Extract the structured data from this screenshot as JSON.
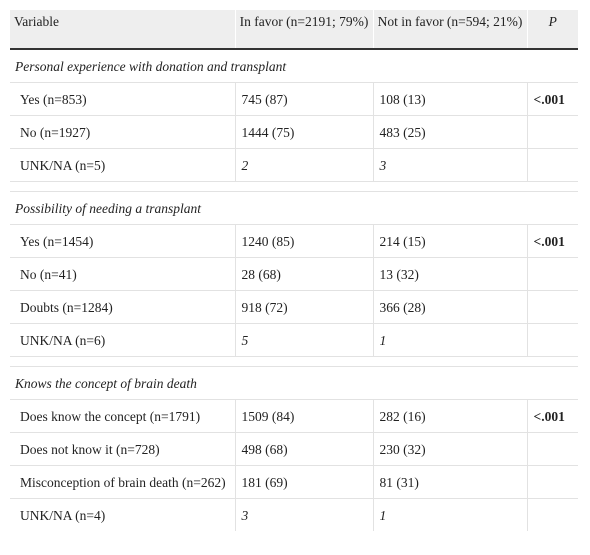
{
  "table": {
    "header": [
      "Variable",
      "In favor (n=2191; 79%)",
      "Not in favor (n=594; 21%)",
      "P"
    ],
    "sections": [
      {
        "title": "Personal experience with donation and transplant",
        "rows": [
          {
            "variable": "Yes (n=853)",
            "in_favor": "745 (87)",
            "not_in_favor": "108 (13)",
            "p": "<.001"
          },
          {
            "variable": "No (n=1927)",
            "in_favor": "1444 (75)",
            "not_in_favor": "483 (25)"
          },
          {
            "variable": "UNK/NA (n=5)",
            "in_favor": "2",
            "not_in_favor": "3",
            "italic": true
          }
        ]
      },
      {
        "title": "Possibility of needing a transplant",
        "rows": [
          {
            "variable": "Yes (n=1454)",
            "in_favor": "1240 (85)",
            "not_in_favor": "214 (15)",
            "p": "<.001"
          },
          {
            "variable": "No (n=41)",
            "in_favor": "28 (68)",
            "not_in_favor": "13 (32)"
          },
          {
            "variable": "Doubts (n=1284)",
            "in_favor": "918 (72)",
            "not_in_favor": "366 (28)"
          },
          {
            "variable": "UNK/NA (n=6)",
            "in_favor": "5",
            "not_in_favor": "1",
            "italic": true
          }
        ]
      },
      {
        "title": "Knows the concept of brain death",
        "rows": [
          {
            "variable": "Does know the concept (n=1791)",
            "in_favor": "1509 (84)",
            "not_in_favor": "282 (16)",
            "p": "<.001"
          },
          {
            "variable": "Does not know it (n=728)",
            "in_favor": "498 (68)",
            "not_in_favor": "230 (32)"
          },
          {
            "variable": "Misconception of brain death (n=262)",
            "in_favor": "181 (69)",
            "not_in_favor": "81 (31)"
          },
          {
            "variable": "UNK/NA (n=4)",
            "in_favor": "3",
            "not_in_favor": "1",
            "italic": true
          }
        ]
      }
    ]
  }
}
